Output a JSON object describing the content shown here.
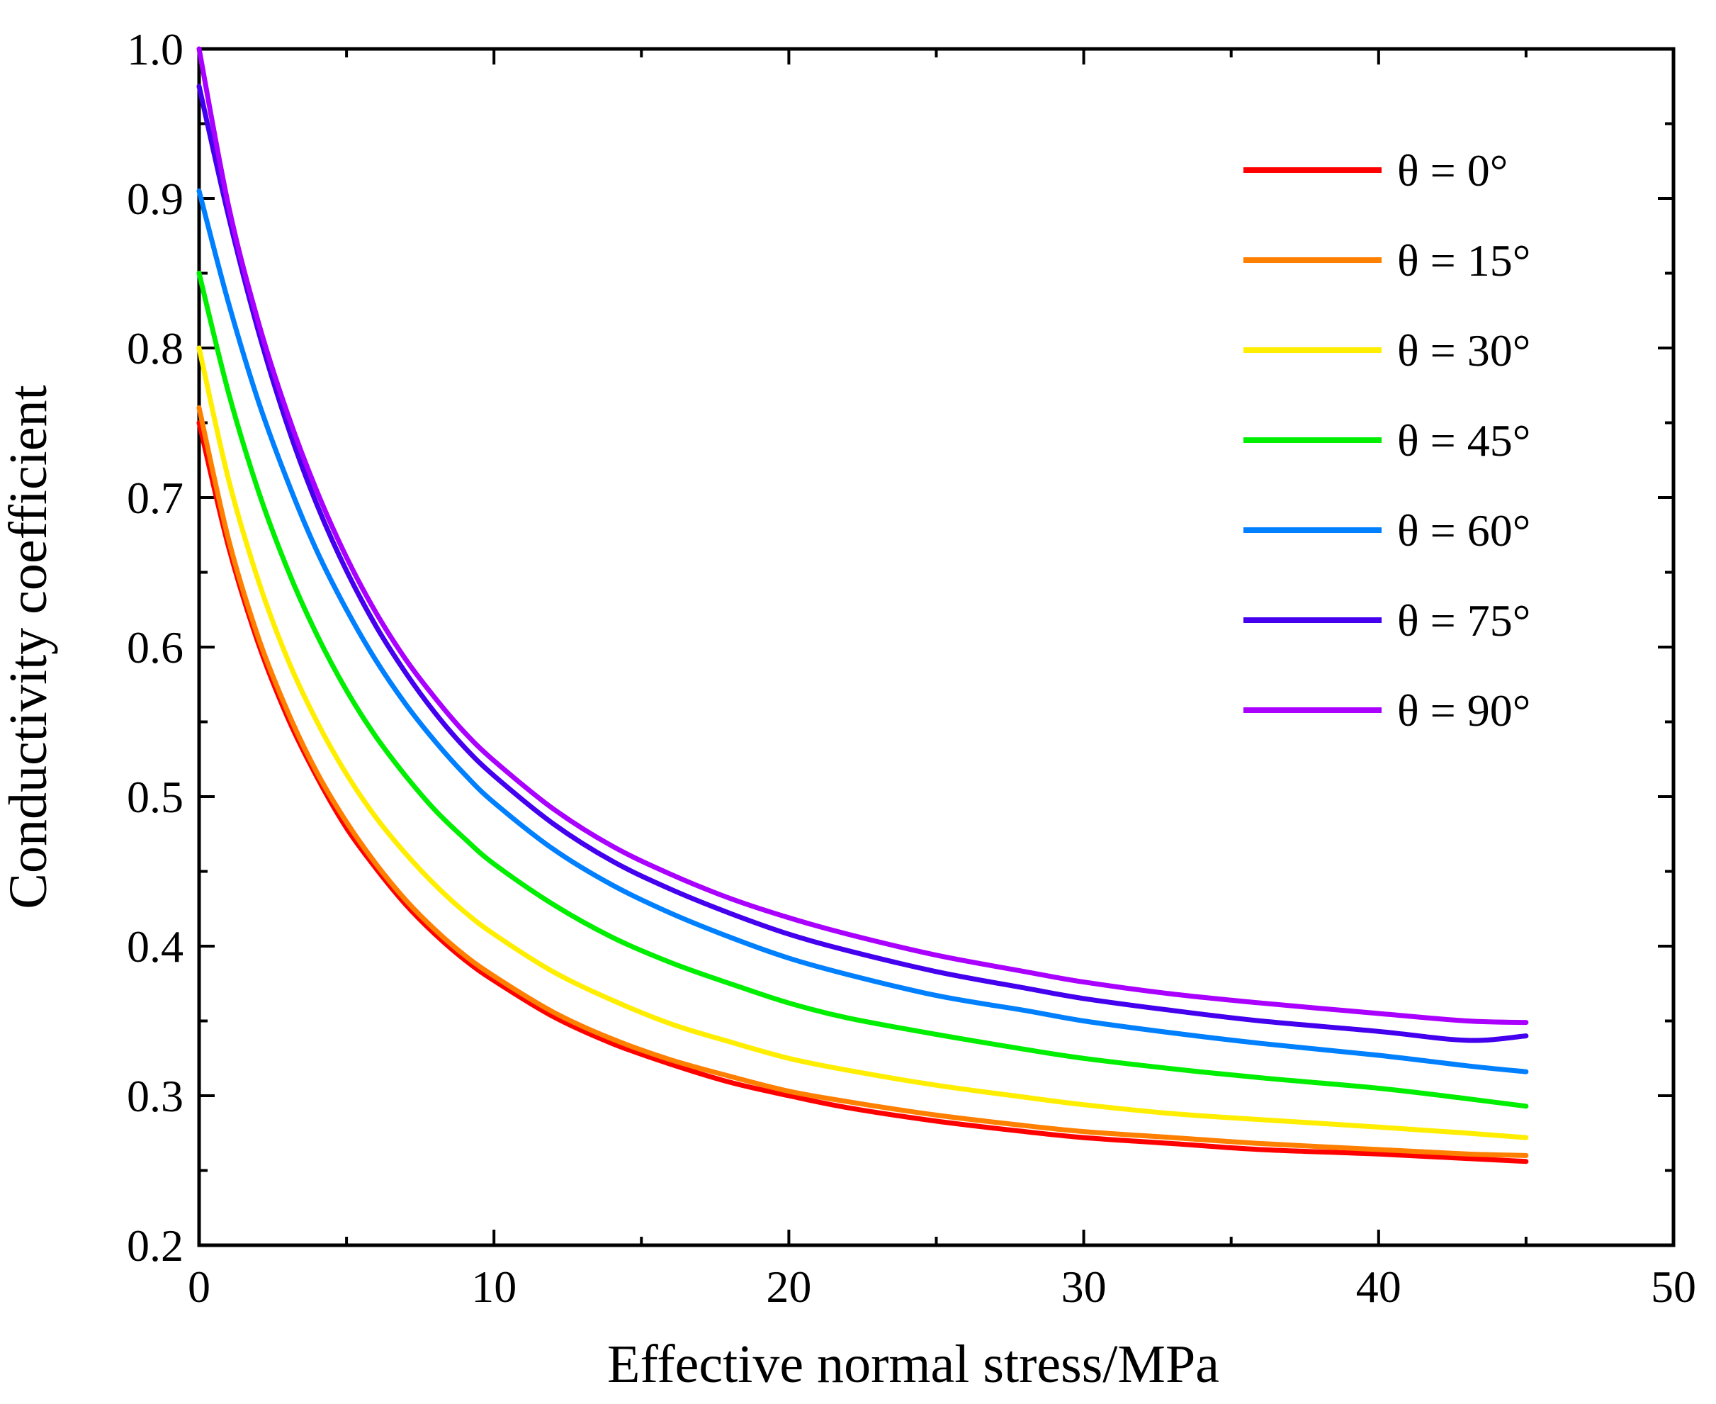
{
  "chart_data": {
    "type": "line",
    "title": "",
    "xlabel": "Effective normal stress/MPa",
    "ylabel": "Conductivity coefficient",
    "xlim": [
      0,
      50
    ],
    "ylim": [
      0.2,
      1.0
    ],
    "x_ticks": [
      "0",
      "10",
      "20",
      "30",
      "40",
      "50"
    ],
    "y_ticks": [
      "0.2",
      "0.3",
      "0.4",
      "0.5",
      "0.6",
      "0.7",
      "0.8",
      "0.9",
      "1.0"
    ],
    "grid": false,
    "legend_position": "top-right",
    "x": [
      0,
      1,
      2,
      3,
      4,
      5,
      6,
      7,
      8,
      9,
      10,
      12,
      14,
      16,
      18,
      20,
      22,
      25,
      28,
      30,
      33,
      36,
      40,
      43,
      45
    ],
    "series": [
      {
        "name": "θ = 0°",
        "color": "#ff0000",
        "values": [
          0.75,
          0.667,
          0.603,
          0.553,
          0.513,
          0.479,
          0.452,
          0.428,
          0.408,
          0.391,
          0.377,
          0.353,
          0.335,
          0.321,
          0.309,
          0.3,
          0.292,
          0.283,
          0.276,
          0.272,
          0.268,
          0.264,
          0.261,
          0.258,
          0.256
        ]
      },
      {
        "name": "θ = 15°",
        "color": "#ff7f00",
        "values": [
          0.76,
          0.672,
          0.607,
          0.557,
          0.516,
          0.483,
          0.455,
          0.431,
          0.411,
          0.394,
          0.38,
          0.356,
          0.338,
          0.324,
          0.313,
          0.303,
          0.296,
          0.287,
          0.28,
          0.276,
          0.272,
          0.268,
          0.264,
          0.261,
          0.26
        ]
      },
      {
        "name": "θ = 30°",
        "color": "#ffee00",
        "values": [
          0.8,
          0.712,
          0.645,
          0.592,
          0.55,
          0.515,
          0.486,
          0.462,
          0.441,
          0.423,
          0.408,
          0.383,
          0.364,
          0.348,
          0.336,
          0.325,
          0.317,
          0.307,
          0.299,
          0.294,
          0.288,
          0.284,
          0.279,
          0.275,
          0.272
        ]
      },
      {
        "name": "θ = 45°",
        "color": "#00ee00",
        "values": [
          0.85,
          0.77,
          0.705,
          0.652,
          0.608,
          0.571,
          0.54,
          0.514,
          0.491,
          0.472,
          0.455,
          0.428,
          0.406,
          0.389,
          0.375,
          0.362,
          0.352,
          0.341,
          0.331,
          0.325,
          0.318,
          0.312,
          0.305,
          0.298,
          0.293
        ]
      },
      {
        "name": "θ = 60°",
        "color": "#0080ff",
        "values": [
          0.905,
          0.83,
          0.765,
          0.711,
          0.664,
          0.625,
          0.591,
          0.562,
          0.537,
          0.515,
          0.496,
          0.465,
          0.441,
          0.422,
          0.406,
          0.392,
          0.381,
          0.367,
          0.357,
          0.35,
          0.342,
          0.335,
          0.327,
          0.32,
          0.316
        ]
      },
      {
        "name": "θ = 75°",
        "color": "#4400ee",
        "values": [
          0.975,
          0.888,
          0.812,
          0.748,
          0.695,
          0.651,
          0.614,
          0.583,
          0.556,
          0.533,
          0.514,
          0.482,
          0.457,
          0.438,
          0.422,
          0.408,
          0.397,
          0.383,
          0.372,
          0.365,
          0.357,
          0.35,
          0.343,
          0.337,
          0.34
        ]
      },
      {
        "name": "θ = 90°",
        "color": "#aa00ff",
        "values": [
          1.0,
          0.895,
          0.818,
          0.756,
          0.704,
          0.66,
          0.623,
          0.592,
          0.566,
          0.543,
          0.524,
          0.492,
          0.467,
          0.448,
          0.432,
          0.419,
          0.408,
          0.394,
          0.383,
          0.376,
          0.368,
          0.362,
          0.355,
          0.35,
          0.349
        ]
      }
    ]
  }
}
